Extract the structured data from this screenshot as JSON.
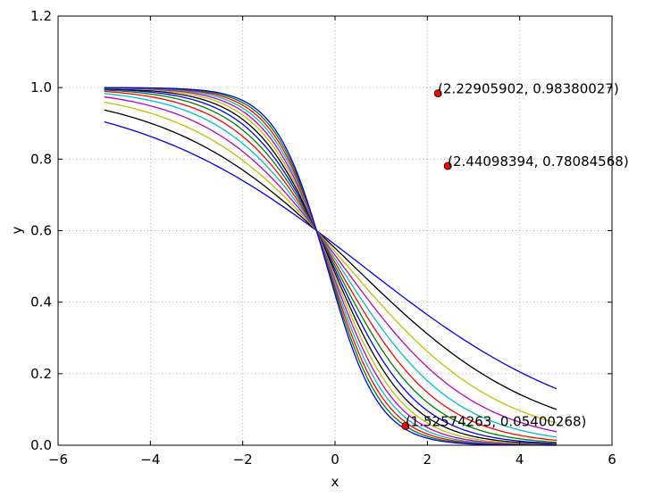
{
  "chart_data": {
    "type": "line",
    "title": "",
    "xlabel": "x",
    "ylabel": "y",
    "xlim": [
      -6,
      6
    ],
    "ylim": [
      0.0,
      1.2
    ],
    "x_ticks": [
      -6,
      -4,
      -2,
      0,
      2,
      4,
      6
    ],
    "y_ticks": [
      0.0,
      0.2,
      0.4,
      0.6,
      0.8,
      1.0,
      1.2
    ],
    "x_tick_labels": [
      "−6",
      "−4",
      "−2",
      "0",
      "2",
      "4",
      "6"
    ],
    "y_tick_labels": [
      "0.0",
      "0.2",
      "0.4",
      "0.6",
      "0.8",
      "1.0",
      "1.2"
    ],
    "grid": true,
    "curve_family": {
      "x_start": -5.0,
      "x_end": 4.8,
      "x_step": 0.1,
      "center": -0.4,
      "center_value": 0.6,
      "steepness_values": [
        0.4,
        0.5,
        0.6,
        0.7,
        0.8,
        0.9,
        1.0,
        1.1,
        1.2,
        1.3,
        1.4,
        1.5,
        1.6,
        1.7,
        1.8
      ],
      "colors": [
        "#0000ff",
        "#000000",
        "#bfbf00",
        "#bf00bf",
        "#00bfbf",
        "#ff0000",
        "#008000",
        "#0000ff",
        "#000000",
        "#bfbf00",
        "#bf00bf",
        "#00bfbf",
        "#ff0000",
        "#008000",
        "#0000ff"
      ]
    },
    "annotations": [
      {
        "x": 2.22905902,
        "y": 0.98380027,
        "label": "(2.22905902, 0.98380027)"
      },
      {
        "x": 2.44098394,
        "y": 0.78084568,
        "label": "(2.44098394, 0.78084568)"
      },
      {
        "x": 1.52574263,
        "y": 0.05400268,
        "label": "(1.52574263, 0.05400268)"
      }
    ],
    "annotation_color": "#ff0000"
  }
}
